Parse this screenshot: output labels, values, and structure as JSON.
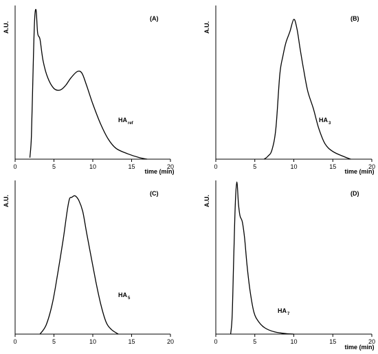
{
  "chart_data": [
    {
      "type": "line",
      "panel_label": "(A)",
      "xlabel": "time (min)",
      "ylabel": "A.U.",
      "xlim": [
        0,
        20
      ],
      "xticks": [
        "0",
        "5",
        "10",
        "15",
        "20"
      ],
      "series_label": {
        "name": "HA",
        "sub": "ref"
      },
      "series": [
        {
          "x": [
            1.9,
            2.1,
            2.3,
            2.5,
            2.7,
            2.9,
            3.2,
            3.6,
            4.2,
            5.0,
            5.8,
            6.5,
            7.2,
            8.0,
            8.6,
            9.2,
            10.0,
            11.0,
            12.0,
            13.0,
            14.5,
            16.0,
            17.0
          ],
          "y": [
            0.01,
            0.15,
            0.55,
            0.9,
            0.97,
            0.82,
            0.78,
            0.64,
            0.53,
            0.46,
            0.45,
            0.48,
            0.53,
            0.57,
            0.56,
            0.48,
            0.36,
            0.23,
            0.13,
            0.07,
            0.035,
            0.01,
            0.0
          ]
        }
      ]
    },
    {
      "type": "line",
      "panel_label": "(B)",
      "xlabel": "time (min)",
      "ylabel": "A.U.",
      "xlim": [
        0,
        20
      ],
      "xticks": [
        "0",
        "5",
        "10",
        "15",
        "20"
      ],
      "series_label": {
        "name": "HA",
        "sub": "3"
      },
      "series": [
        {
          "x": [
            6.2,
            6.7,
            7.2,
            7.7,
            8.2,
            8.6,
            9.0,
            9.5,
            10.0,
            10.4,
            10.8,
            11.3,
            11.8,
            12.5,
            13.2,
            14.0,
            15.0,
            16.5,
            17.3
          ],
          "y": [
            0.0,
            0.02,
            0.06,
            0.2,
            0.55,
            0.67,
            0.76,
            0.83,
            0.91,
            0.85,
            0.72,
            0.57,
            0.44,
            0.33,
            0.2,
            0.1,
            0.05,
            0.015,
            0.0
          ]
        }
      ]
    },
    {
      "type": "line",
      "panel_label": "(C)",
      "xlabel": "",
      "ylabel": "A.U.",
      "xlim": [
        0,
        20
      ],
      "xticks": [
        "0",
        "5",
        "10",
        "15",
        "20"
      ],
      "series_label": {
        "name": "HA",
        "sub": "5"
      },
      "series": [
        {
          "x": [
            3.2,
            4.0,
            4.8,
            5.5,
            6.2,
            6.7,
            7.0,
            7.3,
            7.7,
            8.2,
            8.7,
            9.2,
            9.8,
            10.4,
            11.0,
            11.7,
            12.4,
            13.3
          ],
          "y": [
            0.0,
            0.06,
            0.2,
            0.4,
            0.62,
            0.8,
            0.88,
            0.89,
            0.9,
            0.87,
            0.8,
            0.66,
            0.5,
            0.34,
            0.2,
            0.08,
            0.03,
            0.0
          ]
        }
      ]
    },
    {
      "type": "line",
      "panel_label": "(D)",
      "xlabel": "time (min)",
      "ylabel": "A.U.",
      "xlim": [
        0,
        20
      ],
      "xticks": [
        "0",
        "5",
        "10",
        "15",
        "20"
      ],
      "series_label": {
        "name": "HA",
        "sub": "7"
      },
      "series": [
        {
          "x": [
            1.9,
            2.1,
            2.3,
            2.5,
            2.7,
            2.9,
            3.1,
            3.4,
            3.7,
            4.0,
            4.4,
            4.9,
            5.5,
            6.3,
            7.5,
            9.0,
            10.0
          ],
          "y": [
            0.0,
            0.12,
            0.5,
            0.85,
            0.99,
            0.85,
            0.77,
            0.73,
            0.62,
            0.45,
            0.28,
            0.14,
            0.08,
            0.04,
            0.015,
            0.003,
            0.0
          ]
        }
      ]
    }
  ]
}
